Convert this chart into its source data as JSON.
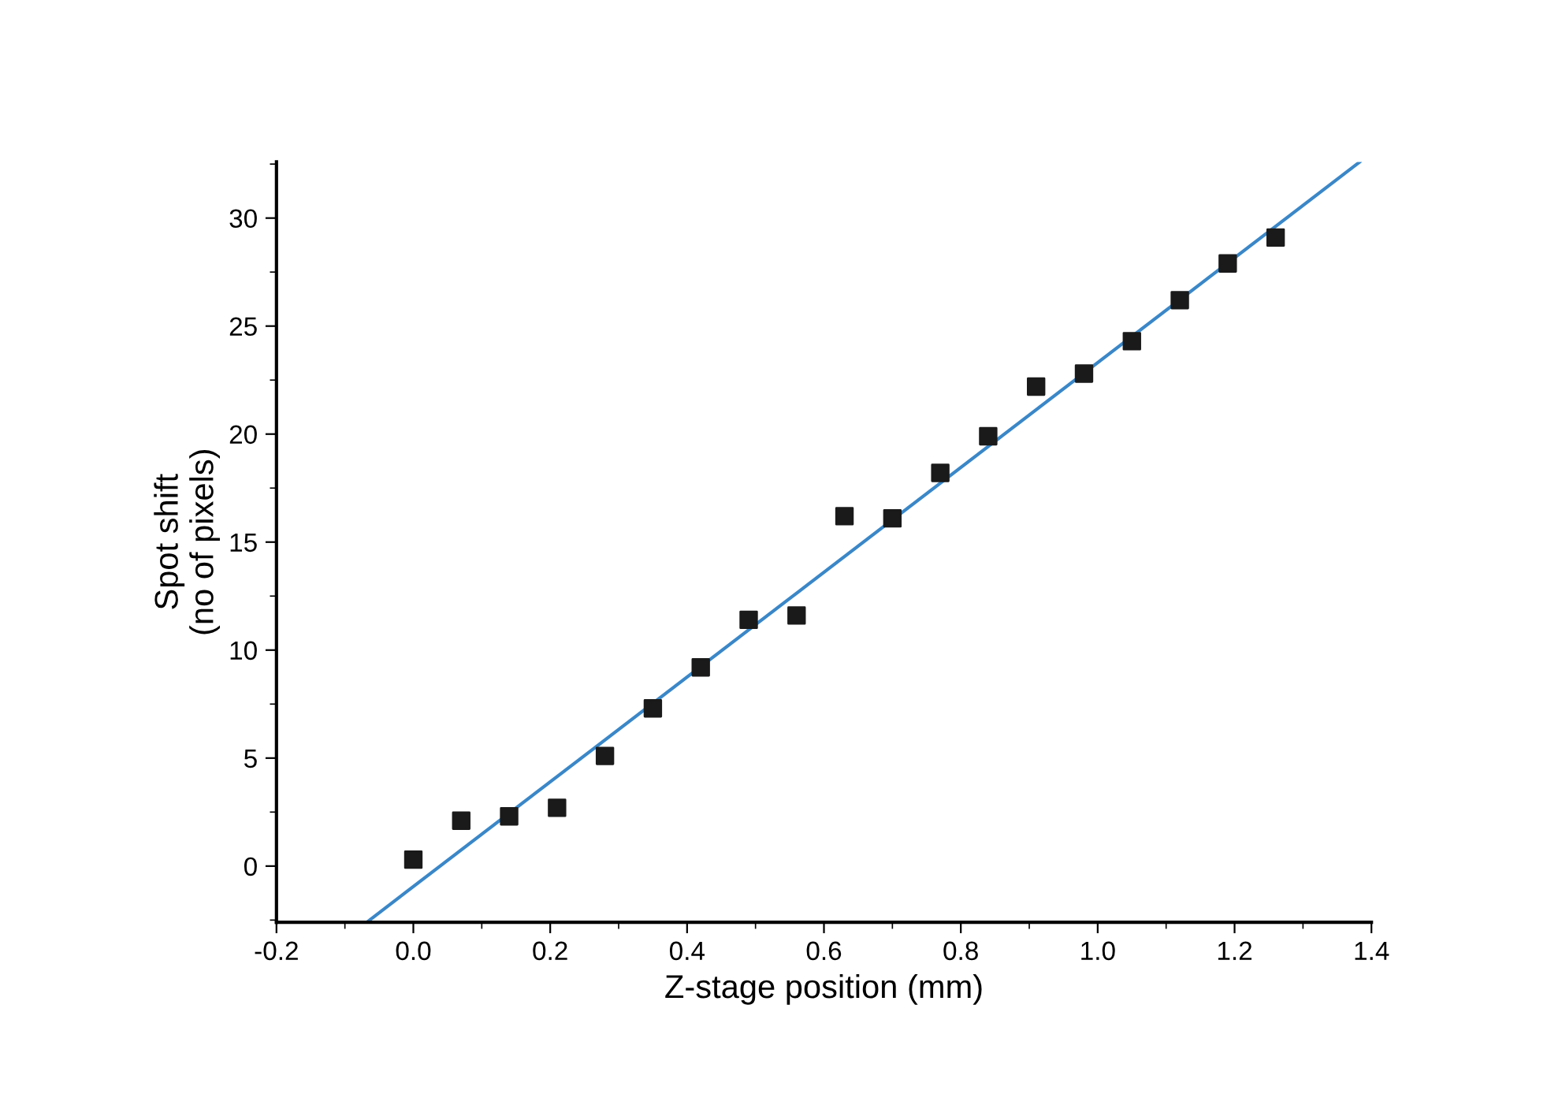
{
  "chart_data": {
    "type": "scatter",
    "xlabel": "Z-stage position (mm)",
    "ylabel": "Spot shift\n(no of pixels)",
    "xlim": [
      -0.2,
      1.4
    ],
    "ylim": [
      -2.6,
      32.6
    ],
    "xticks": [
      {
        "value": -0.2,
        "label": "-0.2"
      },
      {
        "value": -0.1,
        "label": null
      },
      {
        "value": 0.0,
        "label": "0.0"
      },
      {
        "value": 0.1,
        "label": null
      },
      {
        "value": 0.2,
        "label": "0.2"
      },
      {
        "value": 0.3,
        "label": null
      },
      {
        "value": 0.4,
        "label": "0.4"
      },
      {
        "value": 0.5,
        "label": null
      },
      {
        "value": 0.6,
        "label": "0.6"
      },
      {
        "value": 0.7,
        "label": null
      },
      {
        "value": 0.8,
        "label": "0.8"
      },
      {
        "value": 0.9,
        "label": null
      },
      {
        "value": 1.0,
        "label": "1.0"
      },
      {
        "value": 1.1,
        "label": null
      },
      {
        "value": 1.2,
        "label": "1.2"
      },
      {
        "value": 1.3,
        "label": null
      },
      {
        "value": 1.4,
        "label": "1.4"
      }
    ],
    "yticks": [
      {
        "value": -2.5,
        "label": null
      },
      0,
      {
        "value": 2.5,
        "label": null
      },
      5,
      {
        "value": 7.5,
        "label": null
      },
      10,
      {
        "value": 12.5,
        "label": null
      },
      15,
      {
        "value": 17.5,
        "label": null
      },
      20,
      {
        "value": 22.5,
        "label": null
      },
      25,
      {
        "value": 27.5,
        "label": null
      },
      30,
      {
        "value": 32.5,
        "label": null
      }
    ],
    "grid": false,
    "legend": false,
    "marker": "square",
    "series": [
      {
        "color": "#1a1a1a",
        "x": [
          0.0,
          0.07,
          0.14,
          0.21,
          0.28,
          0.35,
          0.42,
          0.49,
          0.56,
          0.63,
          0.7,
          0.77,
          0.84,
          0.91,
          0.98,
          1.05,
          1.12,
          1.19,
          1.26
        ],
        "values": [
          0.3,
          2.1,
          2.3,
          2.7,
          5.1,
          7.3,
          9.2,
          11.4,
          11.6,
          16.2,
          16.1,
          18.2,
          19.9,
          22.2,
          22.8,
          24.3,
          26.2,
          27.9,
          29.1
        ]
      },
      {
        "type": "line",
        "color": "#3a87c8",
        "marker": "none",
        "line_style": "solid",
        "x": [
          -0.068,
          1.383
        ],
        "values": [
          -2.6,
          32.6
        ]
      }
    ]
  }
}
